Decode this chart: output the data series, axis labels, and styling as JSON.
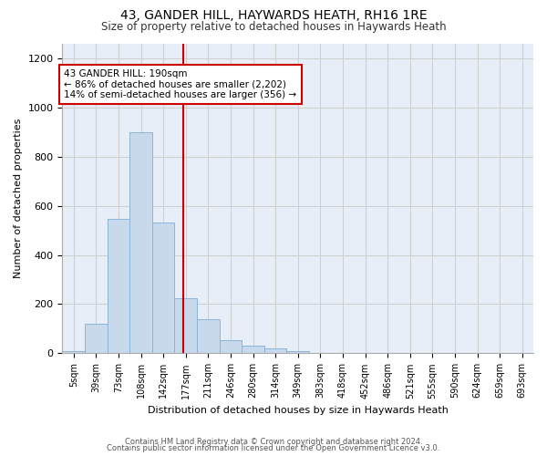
{
  "title": "43, GANDER HILL, HAYWARDS HEATH, RH16 1RE",
  "subtitle": "Size of property relative to detached houses in Haywards Heath",
  "xlabel": "Distribution of detached houses by size in Haywards Heath",
  "ylabel": "Number of detached properties",
  "footer_line1": "Contains HM Land Registry data © Crown copyright and database right 2024.",
  "footer_line2": "Contains public sector information licensed under the Open Government Licence v3.0.",
  "bin_labels": [
    "5sqm",
    "39sqm",
    "73sqm",
    "108sqm",
    "142sqm",
    "177sqm",
    "211sqm",
    "246sqm",
    "280sqm",
    "314sqm",
    "349sqm",
    "383sqm",
    "418sqm",
    "452sqm",
    "486sqm",
    "521sqm",
    "555sqm",
    "590sqm",
    "624sqm",
    "659sqm",
    "693sqm"
  ],
  "bar_values": [
    10,
    120,
    545,
    900,
    530,
    225,
    140,
    55,
    33,
    20,
    10,
    0,
    0,
    0,
    0,
    0,
    0,
    0,
    0,
    0,
    0
  ],
  "bar_color": "#c9d9ec",
  "bar_edge_color": "#8ab4d8",
  "vline_color": "#cc0000",
  "annotation_text": "43 GANDER HILL: 190sqm\n← 86% of detached houses are smaller (2,202)\n14% of semi-detached houses are larger (356) →",
  "annotation_box_color": "#ffffff",
  "annotation_box_edge": "#cc0000",
  "ylim": [
    0,
    1260
  ],
  "yticks": [
    0,
    200,
    400,
    600,
    800,
    1000,
    1200
  ],
  "grid_color": "#d0d0d0",
  "bg_color": "#e8eef7",
  "plot_bg_color": "#e8eef7",
  "title_fontsize": 10,
  "subtitle_fontsize": 8.5,
  "tick_fontsize": 7,
  "ylabel_fontsize": 8,
  "xlabel_fontsize": 8,
  "footer_fontsize": 6
}
